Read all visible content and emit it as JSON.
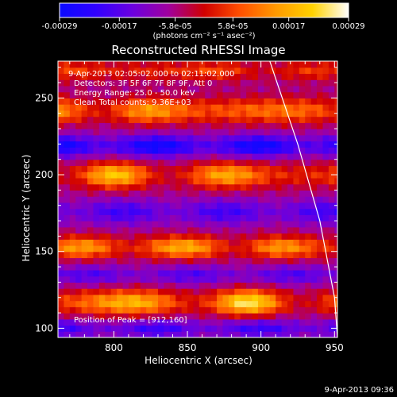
{
  "chart_data": {
    "type": "heatmap",
    "title": "Reconstructed RHESSI Image",
    "xlabel": "Heliocentric X (arcsec)",
    "ylabel": "Heliocentric Y (arcsec)",
    "xlim": [
      762,
      952
    ],
    "ylim": [
      94,
      274
    ],
    "x_ticks": [
      800,
      850,
      900,
      950
    ],
    "y_ticks": [
      100,
      150,
      200,
      250
    ],
    "colorbar": {
      "ticks": [
        "-0.00029",
        "-0.00017",
        "-5.8e-05",
        "5.8e-05",
        "0.00017",
        "0.00029"
      ],
      "unit_label": "(photons cm⁻² s⁻¹ asec⁻²)",
      "range": [
        -0.00029,
        0.00029
      ],
      "colors": [
        "#0a0aff",
        "#3000ff",
        "#6a00e0",
        "#a000a0",
        "#d00000",
        "#ff5000",
        "#ff9a00",
        "#ffd200",
        "#ffffff"
      ]
    },
    "annotations": [
      "9-Apr-2013 02:05:02.000 to 02:11:02.000",
      "Detectors: 3F 5F 6F 7F 8F 9F, Att 0",
      "Energy Range: 25.0 - 50.0 keV",
      "Clean    Total counts: 9.36E+03"
    ],
    "peak_label": "Position of Peak = [912,160]",
    "timestamp": "9-Apr-2013 09:36",
    "bands": [
      {
        "y": 242,
        "amp": 0.00026,
        "halfwidth": 8
      },
      {
        "y": 200,
        "amp": 0.00024,
        "halfwidth": 8
      },
      {
        "y": 153,
        "amp": 0.00027,
        "halfwidth": 7
      },
      {
        "y": 117,
        "amp": 0.00029,
        "halfwidth": 8
      },
      {
        "y": 268,
        "amp": 0.00016,
        "halfwidth": 6
      }
    ],
    "troughs": [
      {
        "y": 219,
        "amp": -0.00022,
        "halfwidth": 7
      },
      {
        "y": 176,
        "amp": -0.00014,
        "halfwidth": 8
      },
      {
        "y": 135,
        "amp": -0.00012,
        "halfwidth": 6
      },
      {
        "y": 100,
        "amp": -0.00015,
        "halfwidth": 6
      }
    ],
    "limb": [
      [
        906,
        274
      ],
      [
        925,
        220
      ],
      [
        940,
        170
      ],
      [
        950,
        120
      ],
      [
        952,
        94
      ]
    ]
  }
}
